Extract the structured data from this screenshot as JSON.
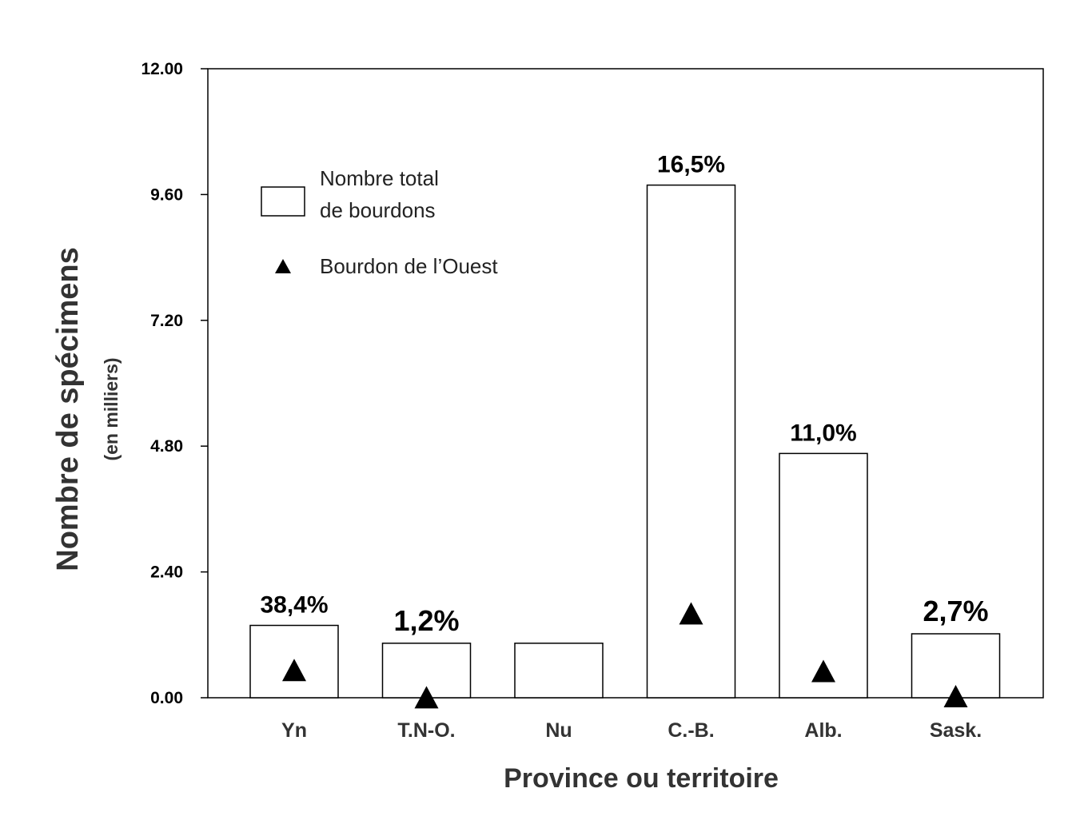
{
  "chart_data": {
    "type": "bar",
    "categories": [
      "Yn",
      "T.N-O.",
      "Nu",
      "C.-B.",
      "Alb.",
      "Sask."
    ],
    "series": [
      {
        "name": "Nombre total de bourdons",
        "values": [
          1.38,
          1.04,
          1.04,
          9.78,
          4.66,
          1.22
        ]
      },
      {
        "name": "Bourdon de l’Ouest",
        "values": [
          0.53,
          0.01,
          null,
          1.61,
          0.51,
          0.03
        ]
      }
    ],
    "data_labels": [
      "38,4%",
      "1,2%",
      "",
      "16,5%",
      "11,0%",
      "2,7%"
    ],
    "xlabel": "Province ou territoire",
    "ylabel": "Nombre de spécimens",
    "ylabel_sub": "(en milliers)",
    "ylim": [
      0,
      12
    ],
    "yticks": [
      "0.00",
      "2.40",
      "4.80",
      "7.20",
      "9.60",
      "12.00"
    ],
    "legend": {
      "placement": "top-left",
      "bar_label_line1": "Nombre total",
      "bar_label_line2": "de bourdons",
      "marker_label": "Bourdon de l’Ouest"
    },
    "grid": false
  }
}
